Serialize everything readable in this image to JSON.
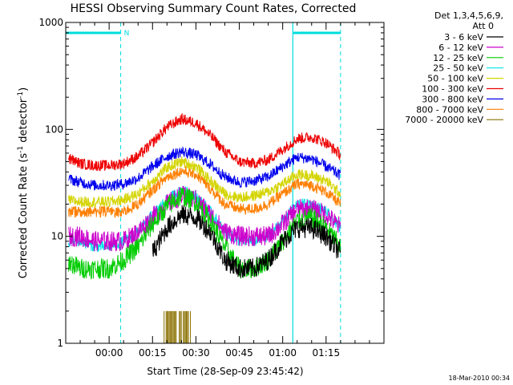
{
  "chart_data": {
    "type": "line",
    "title": "HESSI Observing Summary Count Rates, Corrected",
    "xlabel": "Start Time (28-Sep-09 23:45:42)",
    "ylabel_main": "Corrected Count Rate (s",
    "ylabel_sup1": "-1",
    "ylabel_mid": " detector",
    "ylabel_sup2": "-1",
    "ylabel_end": ")",
    "y_scale": "log",
    "ylim": [
      1,
      1000
    ],
    "xlim_min": [
      -15,
      95
    ],
    "x_unit": "minutes after 00:00 UT, 29-Sep-09",
    "x_ticks": [
      {
        "t": 0,
        "label": "00:00"
      },
      {
        "t": 15,
        "label": "00:15"
      },
      {
        "t": 30,
        "label": "00:30"
      },
      {
        "t": 45,
        "label": "00:45"
      },
      {
        "t": 60,
        "label": "01:00"
      },
      {
        "t": 75,
        "label": "01:15"
      }
    ],
    "y_ticks": [
      {
        "v": 1,
        "label": "1"
      },
      {
        "v": 10,
        "label": "10"
      },
      {
        "v": 100,
        "label": "100"
      },
      {
        "v": 1000,
        "label": "1000"
      }
    ],
    "legend_header_1": "Det 1,3,4,5,6,9,",
    "legend_header_2": "Att 0",
    "legend_position": "right",
    "annotation_flag": "N",
    "date_stamp": "18-Mar-2010 00:34",
    "night_intervals": [
      [
        -15,
        4
      ],
      [
        63.5,
        80
      ]
    ],
    "data_sampling": "noisy time series, peaks at 00:25 and 01:08; values read from the plot",
    "series": [
      {
        "name": "3 - 6 keV",
        "color": "#000000",
        "x": [
          -5,
          0,
          5,
          10,
          15,
          20,
          25,
          30,
          35,
          40,
          45,
          50,
          55,
          60,
          65,
          70,
          75,
          80
        ],
        "y": [
          null,
          null,
          null,
          null,
          7,
          12,
          16,
          15,
          11,
          6,
          5,
          5,
          6,
          9,
          12,
          12,
          10,
          7
        ]
      },
      {
        "name": "6 - 12 keV",
        "color": "#cc00cc",
        "x": [
          -15,
          -10,
          -5,
          0,
          5,
          10,
          15,
          20,
          25,
          30,
          35,
          40,
          45,
          50,
          55,
          60,
          65,
          70,
          75,
          80
        ],
        "y": [
          10,
          10,
          9,
          9,
          9,
          11,
          15,
          20,
          24,
          22,
          16,
          11,
          10,
          10,
          10,
          13,
          18,
          18,
          16,
          12
        ]
      },
      {
        "name": "12 - 25 keV",
        "color": "#00cc00",
        "x": [
          -15,
          -10,
          -5,
          0,
          5,
          10,
          15,
          20,
          25,
          30,
          35,
          40,
          45,
          50,
          55,
          60,
          65,
          70,
          75,
          80
        ],
        "y": [
          6,
          5,
          5,
          5,
          6,
          8,
          13,
          19,
          24,
          21,
          14,
          8,
          5,
          5,
          6,
          9,
          14,
          15,
          12,
          8
        ]
      },
      {
        "name": "25 - 50 keV",
        "color": "#00e5e5",
        "x": [
          -15,
          -10,
          -5,
          0,
          5,
          10,
          15,
          20,
          25,
          30,
          35,
          40,
          45,
          50,
          55,
          60,
          65,
          70,
          75,
          80
        ],
        "y": [
          9,
          9,
          8,
          8,
          9,
          11,
          16,
          22,
          27,
          24,
          17,
          11,
          9,
          9,
          10,
          14,
          20,
          20,
          17,
          12
        ]
      },
      {
        "name": "50 - 100 keV",
        "color": "#d4d400",
        "x": [
          -15,
          -10,
          -5,
          0,
          5,
          10,
          15,
          20,
          25,
          30,
          35,
          40,
          45,
          50,
          55,
          60,
          65,
          70,
          75,
          80
        ],
        "y": [
          22,
          21,
          21,
          21,
          22,
          25,
          33,
          44,
          50,
          45,
          33,
          25,
          23,
          24,
          26,
          31,
          38,
          37,
          33,
          25
        ]
      },
      {
        "name": "100 - 300 keV",
        "color": "#ee0000",
        "x": [
          -15,
          -10,
          -5,
          0,
          5,
          10,
          15,
          20,
          25,
          30,
          35,
          40,
          45,
          50,
          55,
          60,
          65,
          70,
          75,
          80
        ],
        "y": [
          55,
          48,
          46,
          46,
          48,
          56,
          75,
          105,
          125,
          115,
          88,
          62,
          50,
          48,
          52,
          65,
          82,
          85,
          75,
          58
        ]
      },
      {
        "name": "300 - 800 keV",
        "color": "#0000ee",
        "x": [
          -15,
          -10,
          -5,
          0,
          5,
          10,
          15,
          20,
          25,
          30,
          35,
          40,
          45,
          50,
          55,
          60,
          65,
          70,
          75,
          80
        ],
        "y": [
          35,
          32,
          30,
          30,
          31,
          35,
          45,
          56,
          62,
          58,
          47,
          36,
          32,
          33,
          36,
          45,
          55,
          53,
          45,
          37
        ]
      },
      {
        "name": "800 - 7000 keV",
        "color": "#ff7f00",
        "x": [
          -15,
          -10,
          -5,
          0,
          5,
          10,
          15,
          20,
          25,
          30,
          35,
          40,
          45,
          50,
          55,
          60,
          65,
          70,
          75,
          80
        ],
        "y": [
          17,
          17,
          17,
          17,
          17,
          20,
          27,
          36,
          41,
          38,
          28,
          20,
          18,
          18,
          20,
          25,
          31,
          30,
          26,
          20
        ]
      },
      {
        "name": "7000 - 20000 keV",
        "color": "#8a7000",
        "bursts": [
          [
            19,
            29,
            2
          ]
        ]
      }
    ]
  }
}
